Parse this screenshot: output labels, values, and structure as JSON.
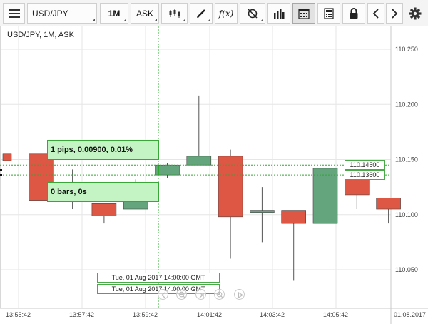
{
  "toolbar": {
    "symbol": "USD/JPY",
    "timeframe": "1M",
    "price_side": "ASK",
    "function_label": "f(x)"
  },
  "chart": {
    "title": "USD/JPY, 1M, ASK",
    "measure_top": "1 pips, 0.00900, 0.01%",
    "measure_bottom": "0 bars, 0s",
    "price_tag_upper": "110.14500",
    "price_tag_lower": "110.13600",
    "time_tag_1": "Tue, 01 Aug 2017 14:00:00 GMT",
    "time_tag_2": "Tue, 01 Aug 2017 14:00:00 GMT",
    "y_ticks": [
      {
        "value": 110.25,
        "label": "110.250"
      },
      {
        "value": 110.2,
        "label": "110.200"
      },
      {
        "value": 110.15,
        "label": "110.150"
      },
      {
        "value": 110.1,
        "label": "110.100"
      },
      {
        "value": 110.05,
        "label": "110.050"
      }
    ],
    "x_ticks": [
      "13:55:42",
      "13:57:42",
      "13:59:42",
      "14:01:42",
      "14:03:42",
      "14:05:42"
    ],
    "date_label": "01.08.2017",
    "colors": {
      "bull": "#65a57d",
      "bear": "#de5744",
      "crosshair": "#2fa82f"
    }
  },
  "chart_data": {
    "type": "candlestick",
    "title": "USD/JPY, 1M, ASK",
    "y_range": [
      110.02,
      110.27
    ],
    "x": [
      "13:55",
      "13:56",
      "13:57",
      "13:58",
      "13:59",
      "14:00",
      "14:01",
      "14:02",
      "14:03",
      "14:04",
      "14:05",
      "14:06",
      "14:07",
      "14:08"
    ],
    "candles": [
      {
        "x": "13:55",
        "open": 110.155,
        "close": 110.149,
        "high": 110.155,
        "low": 110.149
      },
      {
        "x": "13:56",
        "open": 110.155,
        "close": 110.113,
        "high": 110.155,
        "low": 110.113
      },
      {
        "x": "13:57",
        "open": 110.12,
        "close": 110.113,
        "high": 110.141,
        "low": 110.105
      },
      {
        "x": "13:58",
        "open": 110.11,
        "close": 110.099,
        "high": 110.11,
        "low": 110.092
      },
      {
        "x": "13:59",
        "open": 110.105,
        "close": 110.112,
        "high": 110.132,
        "low": 110.105
      },
      {
        "x": "14:00",
        "open": 110.136,
        "close": 110.145,
        "high": 110.147,
        "low": 110.133
      },
      {
        "x": "14:01",
        "open": 110.145,
        "close": 110.153,
        "high": 110.208,
        "low": 110.145
      },
      {
        "x": "14:02",
        "open": 110.153,
        "close": 110.098,
        "high": 110.159,
        "low": 110.06
      },
      {
        "x": "14:03",
        "open": 110.102,
        "close": 110.104,
        "high": 110.125,
        "low": 110.075
      },
      {
        "x": "14:04",
        "open": 110.104,
        "close": 110.092,
        "high": 110.104,
        "low": 110.04
      },
      {
        "x": "14:05",
        "open": 110.092,
        "close": 110.142,
        "high": 110.142,
        "low": 110.092
      },
      {
        "x": "14:06",
        "open": 110.142,
        "close": 110.118,
        "high": 110.142,
        "low": 110.105
      },
      {
        "x": "14:07",
        "open": 110.115,
        "close": 110.105,
        "high": 110.115,
        "low": 110.092
      }
    ]
  }
}
